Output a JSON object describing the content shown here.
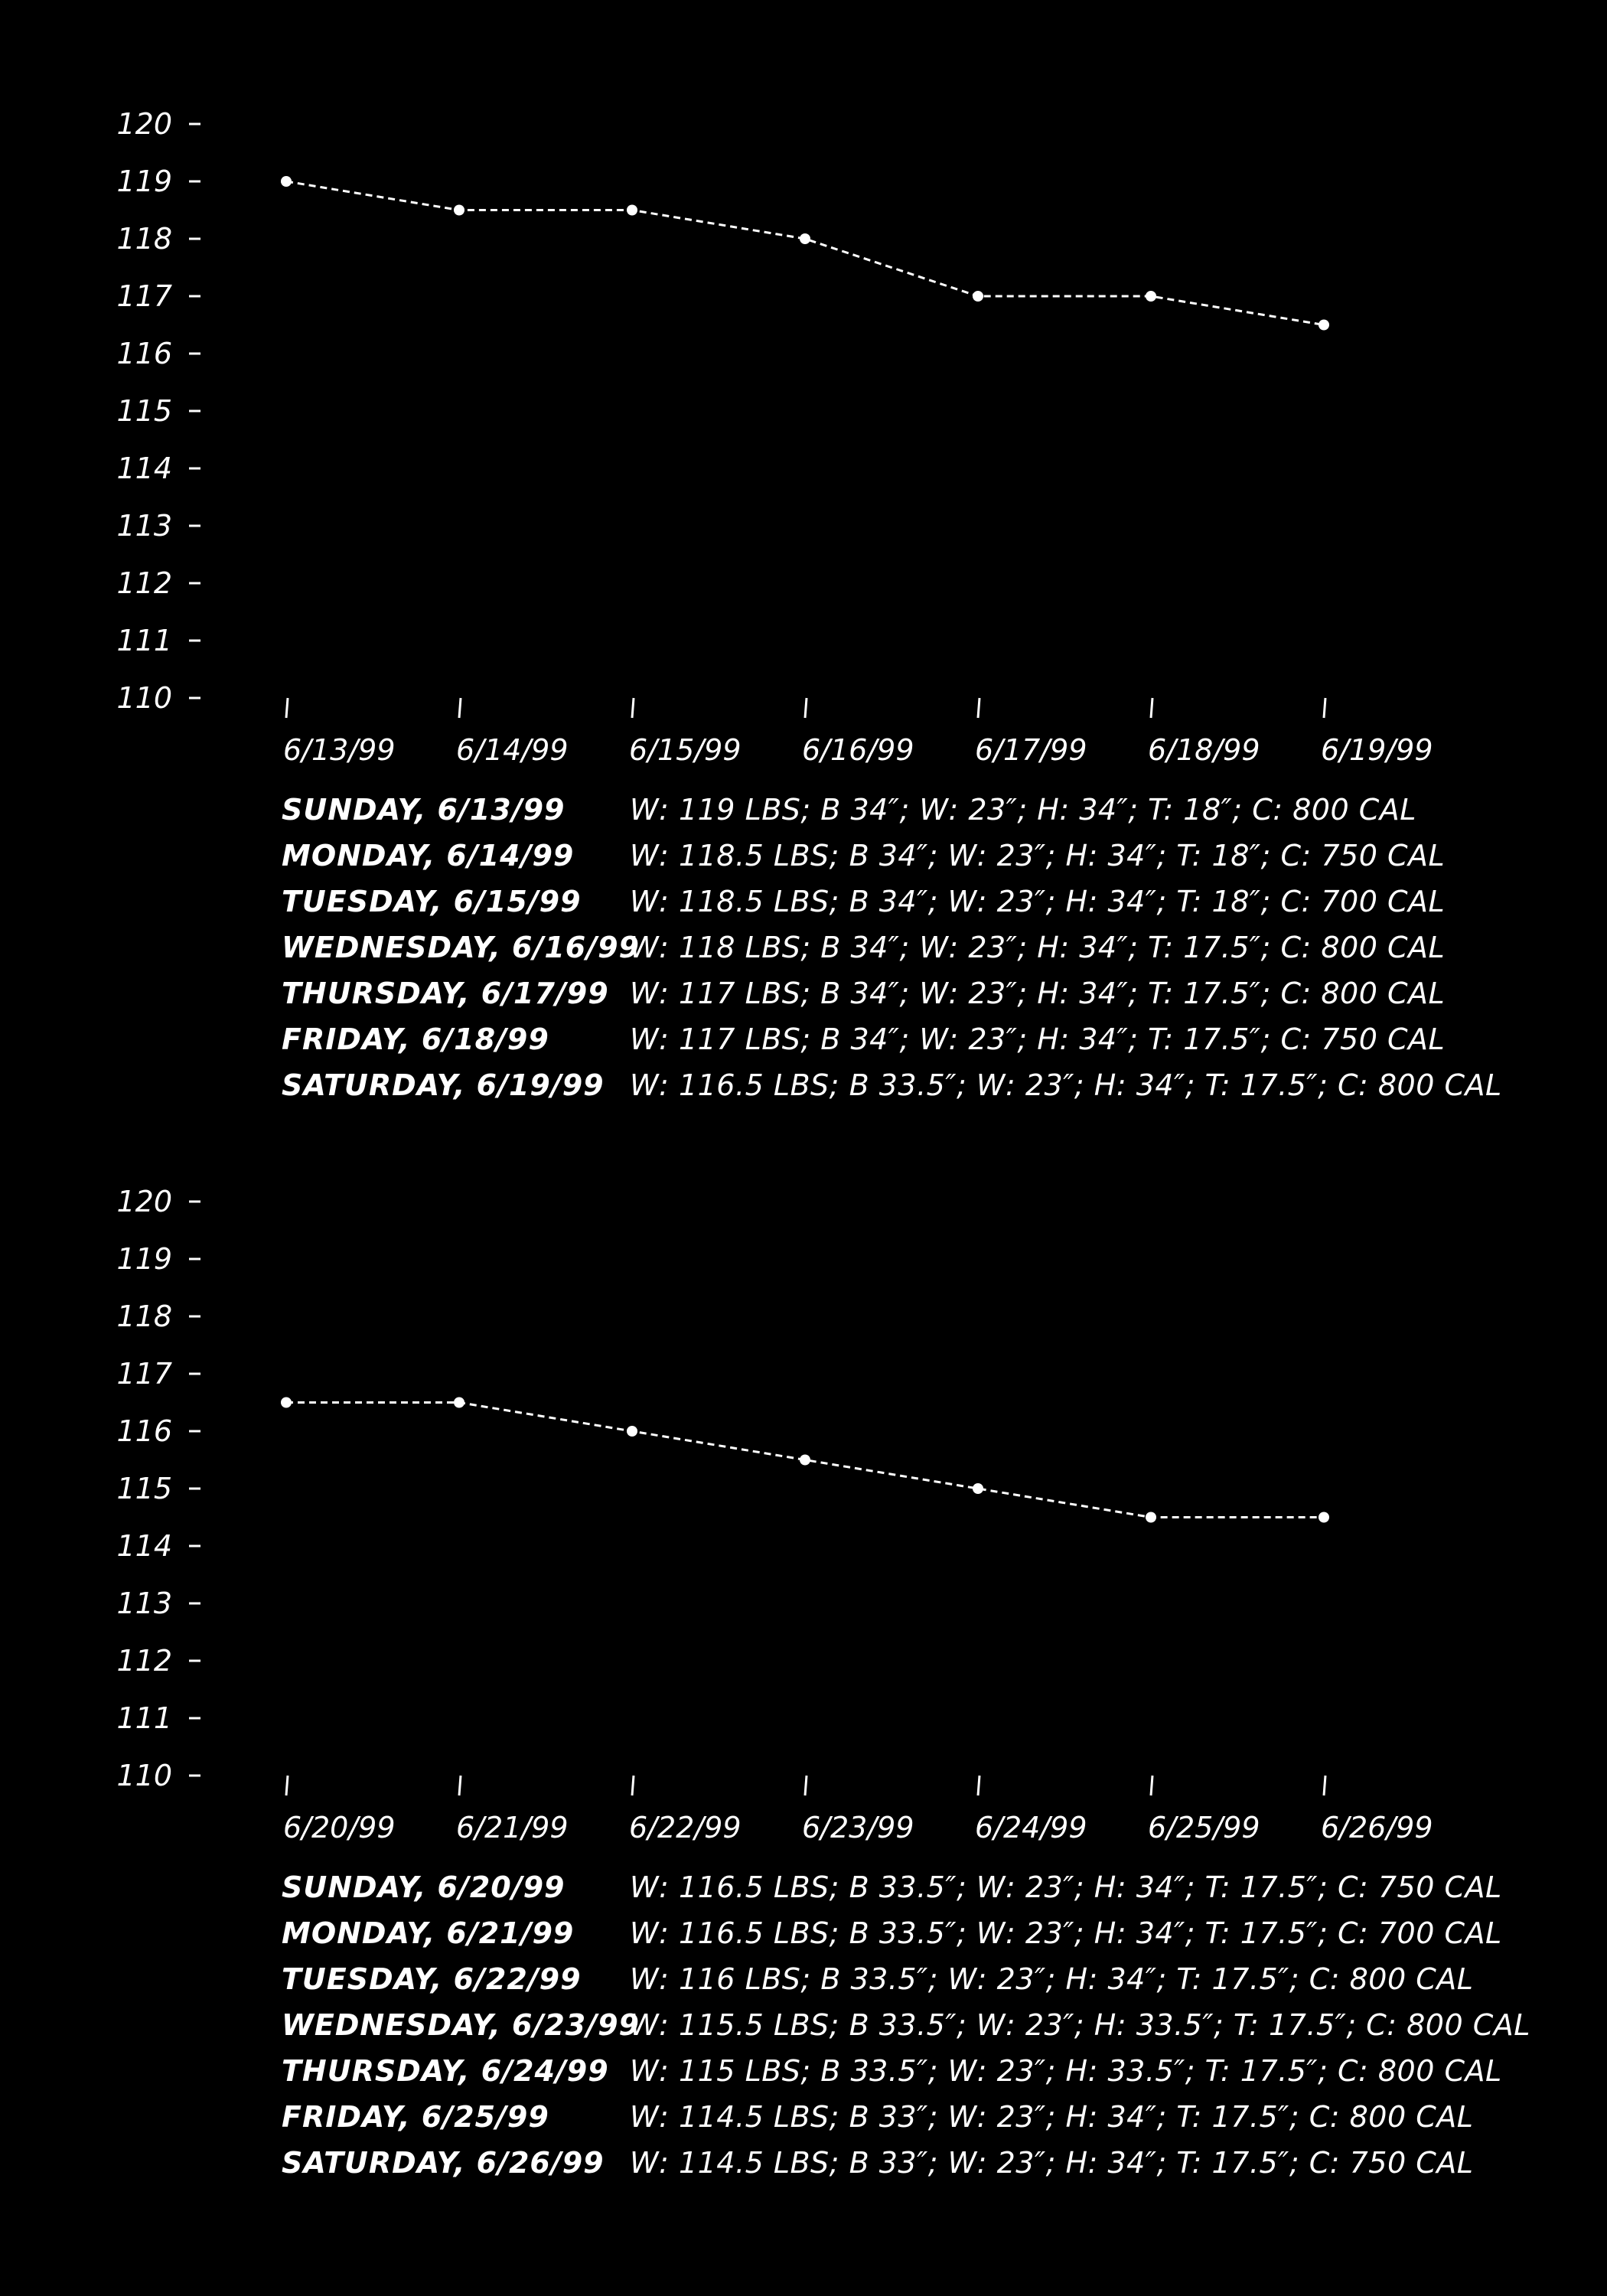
{
  "chart_data": [
    {
      "type": "line",
      "ylim": [
        110,
        120
      ],
      "yticks": [
        "120",
        "119",
        "118",
        "117",
        "116",
        "115",
        "114",
        "113",
        "112",
        "111",
        "110"
      ],
      "categories": [
        "6/13/99",
        "6/14/99",
        "6/15/99",
        "6/16/99",
        "6/17/99",
        "6/18/99",
        "6/19/99"
      ],
      "series": [
        {
          "values": [
            119,
            118.5,
            118.5,
            118,
            117,
            117,
            116.5
          ]
        }
      ],
      "log": [
        {
          "day": "SUNDAY, 6/13/99",
          "stats": "W: 119 LBS; B 34″; W: 23″; H: 34″; T: 18″; C: 800 CAL"
        },
        {
          "day": "MONDAY, 6/14/99",
          "stats": "W: 118.5 LBS; B 34″; W: 23″; H: 34″; T: 18″; C: 750 CAL"
        },
        {
          "day": "TUESDAY, 6/15/99",
          "stats": "W: 118.5 LBS; B 34″; W: 23″; H: 34″; T: 18″; C: 700 CAL"
        },
        {
          "day": "WEDNESDAY, 6/16/99",
          "stats": "W: 118 LBS; B 34″; W: 23″; H: 34″; T: 17.5″; C: 800 CAL"
        },
        {
          "day": "THURSDAY, 6/17/99",
          "stats": "W: 117 LBS; B 34″; W: 23″; H: 34″; T: 17.5″; C: 800 CAL"
        },
        {
          "day": "FRIDAY, 6/18/99",
          "stats": "W: 117 LBS; B 34″; W: 23″; H: 34″; T: 17.5″; C: 750 CAL"
        },
        {
          "day": "SATURDAY, 6/19/99",
          "stats": "W: 116.5 LBS; B 33.5″; W: 23″; H: 34″; T: 17.5″; C: 800 CAL"
        }
      ]
    },
    {
      "type": "line",
      "ylim": [
        110,
        120
      ],
      "yticks": [
        "120",
        "119",
        "118",
        "117",
        "116",
        "115",
        "114",
        "113",
        "112",
        "111",
        "110"
      ],
      "categories": [
        "6/20/99",
        "6/21/99",
        "6/22/99",
        "6/23/99",
        "6/24/99",
        "6/25/99",
        "6/26/99"
      ],
      "series": [
        {
          "values": [
            116.5,
            116.5,
            116,
            115.5,
            115,
            114.5,
            114.5
          ]
        }
      ],
      "log": [
        {
          "day": "SUNDAY, 6/20/99",
          "stats": "W: 116.5 LBS; B 33.5″; W: 23″; H: 34″; T: 17.5″; C: 750 CAL"
        },
        {
          "day": "MONDAY, 6/21/99",
          "stats": "W: 116.5 LBS; B 33.5″; W: 23″; H: 34″; T: 17.5″; C: 700 CAL"
        },
        {
          "day": "TUESDAY, 6/22/99",
          "stats": "W: 116 LBS; B 33.5″; W: 23″; H: 34″; T: 17.5″; C: 800 CAL"
        },
        {
          "day": "WEDNESDAY, 6/23/99",
          "stats": "W: 115.5 LBS; B 33.5″; W: 23″; H: 33.5″; T: 17.5″; C: 800 CAL"
        },
        {
          "day": "THURSDAY, 6/24/99",
          "stats": "W: 115 LBS; B 33.5″; W: 23″; H: 33.5″; T: 17.5″; C: 800 CAL"
        },
        {
          "day": "FRIDAY, 6/25/99",
          "stats": "W: 114.5 LBS; B 33″; W: 23″; H: 34″; T: 17.5″; C: 800 CAL"
        },
        {
          "day": "SATURDAY, 6/26/99",
          "stats": "W: 114.5 LBS; B 33″; W: 23″; H: 34″; T: 17.5″; C: 750 CAL"
        }
      ]
    }
  ]
}
